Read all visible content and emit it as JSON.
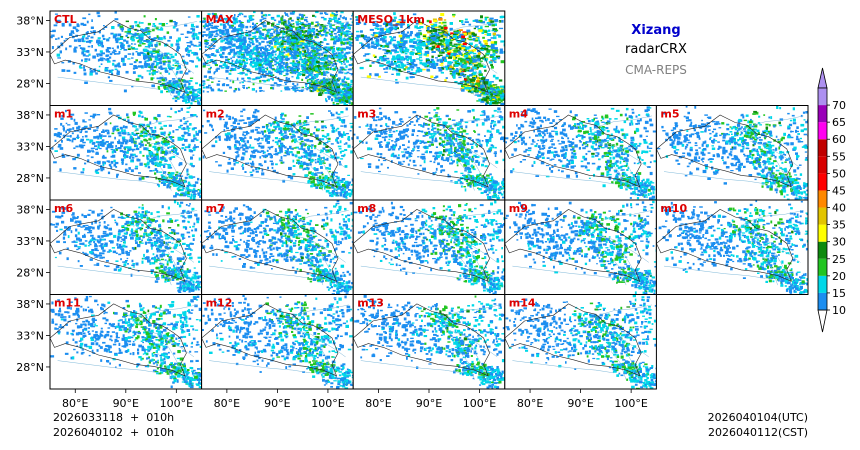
{
  "chart_data": {
    "type": "heatmap",
    "title": "Xizang",
    "subtitle": "radarCRX",
    "source": "CMA-REPS",
    "panels": [
      "CTL",
      "MAX",
      "MESO_1km",
      "m1",
      "m2",
      "m3",
      "m4",
      "m5",
      "m6",
      "m7",
      "m8",
      "m9",
      "m10",
      "m11",
      "m12",
      "m13",
      "m14"
    ],
    "lat_ticks": [
      "38°N",
      "33°N",
      "28°N"
    ],
    "lon_ticks": [
      "80°E",
      "90°E",
      "100°E"
    ],
    "lat_range": [
      24.5,
      39.5
    ],
    "lon_range": [
      75.0,
      105.0
    ],
    "colorbar": {
      "levels": [
        "10",
        "15",
        "20",
        "25",
        "30",
        "35",
        "40",
        "45",
        "50",
        "55",
        "60",
        "65",
        "70"
      ],
      "colors": [
        "#1c8ef0",
        "#00d8e8",
        "#22c522",
        "#0d8a0d",
        "#ffff00",
        "#e2c400",
        "#ff8800",
        "#ff0000",
        "#d80000",
        "#c00000",
        "#ff00f0",
        "#9900b8",
        "#ad90f0"
      ],
      "under_color": "#ffffff"
    },
    "init_time_utc": "2026033118  +  010h",
    "init_time_cst": "2026040102  +  010h",
    "valid_time_utc": "2026040104(UTC)",
    "valid_time_cst": "2026040112(CST)"
  },
  "colors": {
    "panel_label": "#dd0000",
    "title": "#0000cc",
    "source": "#808080",
    "boundary": "#222222",
    "rivers": "#7fb8d8"
  }
}
